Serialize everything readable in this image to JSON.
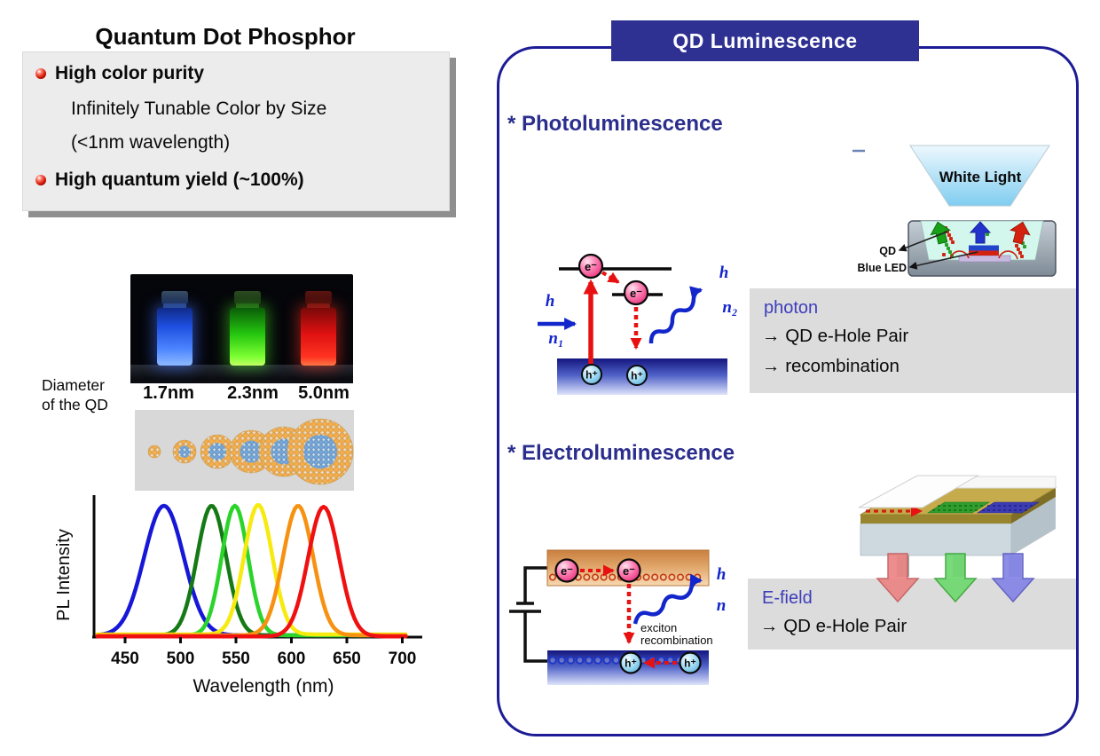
{
  "slide": {
    "title": "Quantum Dot Phosphor"
  },
  "features": {
    "item1": "High color purity",
    "sub1": "Infinitely Tunable Color by Size",
    "sub2": "(<1nm wavelength)",
    "item2": "High quantum yield (~100%)"
  },
  "vials": {
    "labels": [
      "1.7nm",
      "2.3nm",
      "5.0nm"
    ],
    "colors": [
      "#2458ff",
      "#35e010",
      "#f01515"
    ]
  },
  "diameter_caption": {
    "line1": "Diameter",
    "line2": "of the QD"
  },
  "chart_data": {
    "type": "line",
    "title": "",
    "xlabel": "Wavelength (nm)",
    "ylabel": "PL Intensity",
    "xlim": [
      425,
      705
    ],
    "ylim": [
      0,
      1.05
    ],
    "xticks": [
      450,
      500,
      550,
      600,
      650,
      700
    ],
    "grid": false,
    "legend": "none",
    "series": [
      {
        "name": "blue",
        "color": "#1717d8",
        "peak_nm": 485,
        "fwhm_nm": 42,
        "rel_intensity": 1.0
      },
      {
        "name": "dark green",
        "color": "#157a15",
        "peak_nm": 528,
        "fwhm_nm": 31,
        "rel_intensity": 1.0
      },
      {
        "name": "green",
        "color": "#2bd42b",
        "peak_nm": 549,
        "fwhm_nm": 28,
        "rel_intensity": 1.0
      },
      {
        "name": "yellow",
        "color": "#f6ea0e",
        "peak_nm": 570,
        "fwhm_nm": 30,
        "rel_intensity": 1.0
      },
      {
        "name": "orange",
        "color": "#f79111",
        "peak_nm": 606,
        "fwhm_nm": 32,
        "rel_intensity": 1.0
      },
      {
        "name": "red",
        "color": "#ef1111",
        "peak_nm": 629,
        "fwhm_nm": 33,
        "rel_intensity": 1.0
      }
    ]
  },
  "panel": {
    "header": "QD Luminescence",
    "header_bg": "#2e3192",
    "border_color": "#1c1c96"
  },
  "pl": {
    "heading": "* Photoluminescence",
    "diagram": {
      "electron": "e⁻",
      "hole": "h⁺",
      "in_h": "h",
      "in_n": "n₁",
      "out_h": "h",
      "out_n": "n₂"
    },
    "led": {
      "white_light": "White Light",
      "qd_label": "QD",
      "blue_led_label": "Blue LED"
    },
    "box": {
      "title": "photon",
      "lines": [
        "→ QD e-Hole Pair",
        "→ recombination"
      ]
    }
  },
  "el": {
    "heading": "* Electroluminescence",
    "diagram": {
      "electron": "e⁻",
      "hole": "h⁺",
      "h": "h",
      "n": "n",
      "caption_line1": "exciton",
      "caption_line2": "recombination"
    },
    "box": {
      "title": "E-field",
      "lines": [
        "→ QD e-Hole Pair"
      ]
    }
  }
}
